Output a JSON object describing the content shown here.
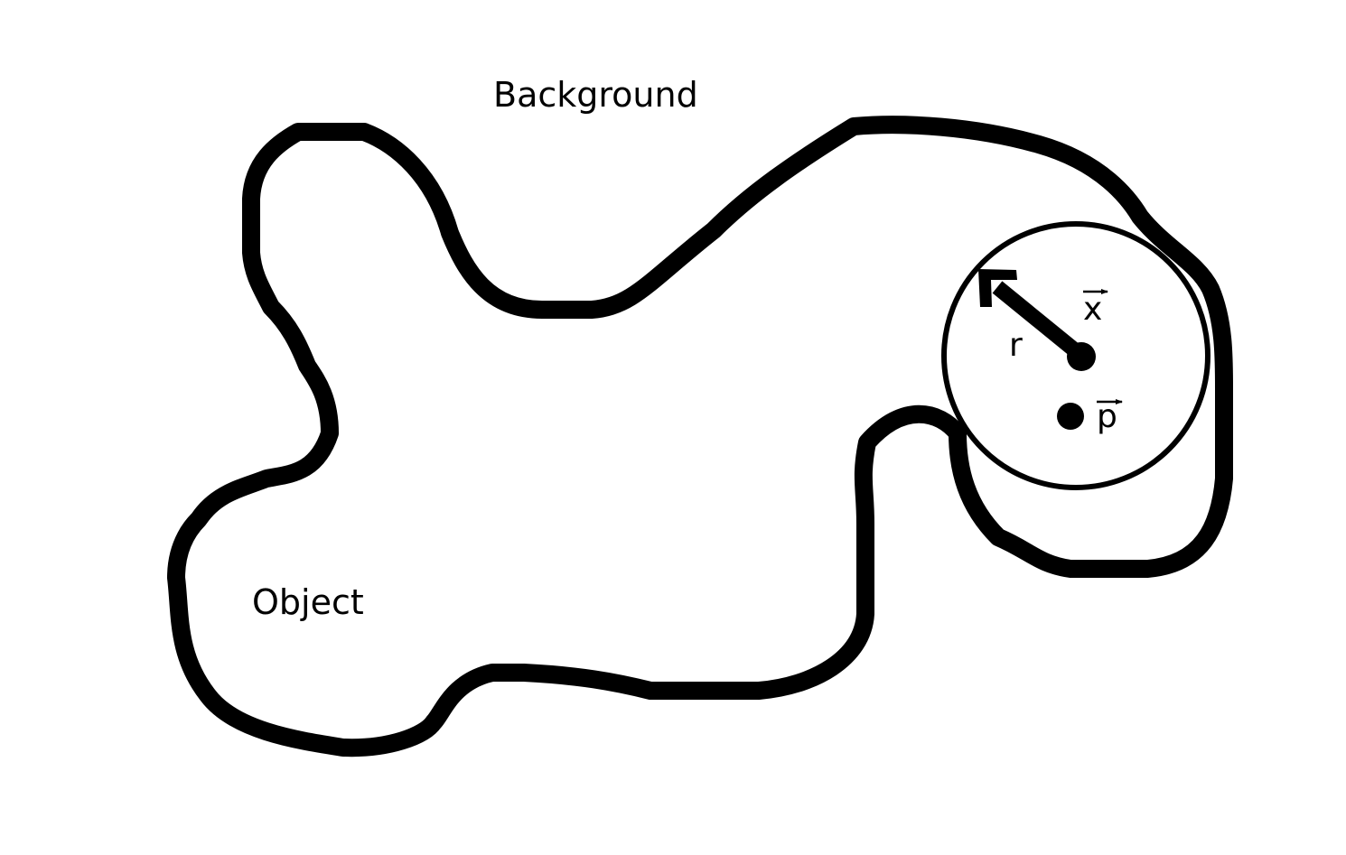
{
  "labels": {
    "background": "Background",
    "object": "Object",
    "radius": "r",
    "vector_x": "x",
    "vector_p": "p"
  },
  "colors": {
    "ink": "#000000",
    "paper": "#ffffff"
  },
  "icons": {
    "vector_arrow": "right-arrow-overline"
  }
}
